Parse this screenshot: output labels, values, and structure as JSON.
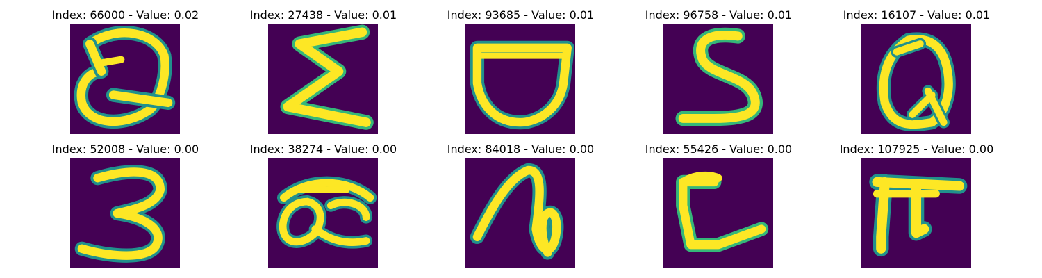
{
  "colors": {
    "background_purple": "#440154",
    "stroke_yellow": "#FDE725",
    "edge_green": "#35B779",
    "edge_teal": "#21918C"
  },
  "chart_data": {
    "type": "image-grid",
    "rows": 2,
    "cols": 5,
    "panels": [
      {
        "index": "66000",
        "value": "0.02",
        "title": "Index: 66000 - Value: 0.02",
        "glyph": "Q"
      },
      {
        "index": "27438",
        "value": "0.01",
        "title": "Index: 27438 - Value: 0.01",
        "glyph": "Σ"
      },
      {
        "index": "93685",
        "value": "0.01",
        "title": "Index: 93685 - Value: 0.01",
        "glyph": "bowl"
      },
      {
        "index": "96758",
        "value": "0.01",
        "title": "Index: 96758 - Value: 0.01",
        "glyph": "S"
      },
      {
        "index": "16107",
        "value": "0.01",
        "title": "Index: 16107 - Value: 0.01",
        "glyph": "Q"
      },
      {
        "index": "52008",
        "value": "0.00",
        "title": "Index: 52008 - Value: 0.00",
        "glyph": "3"
      },
      {
        "index": "38274",
        "value": "0.00",
        "title": "Index: 38274 - Value: 0.00",
        "glyph": "æ"
      },
      {
        "index": "84018",
        "value": "0.00",
        "title": "Index: 84018 - Value: 0.00",
        "glyph": "loop"
      },
      {
        "index": "55426",
        "value": "0.00",
        "title": "Index: 55426 - Value: 0.00",
        "glyph": "L"
      },
      {
        "index": "107925",
        "value": "0.00",
        "title": "Index: 107925 - Value: 0.00",
        "glyph": "π"
      }
    ]
  }
}
